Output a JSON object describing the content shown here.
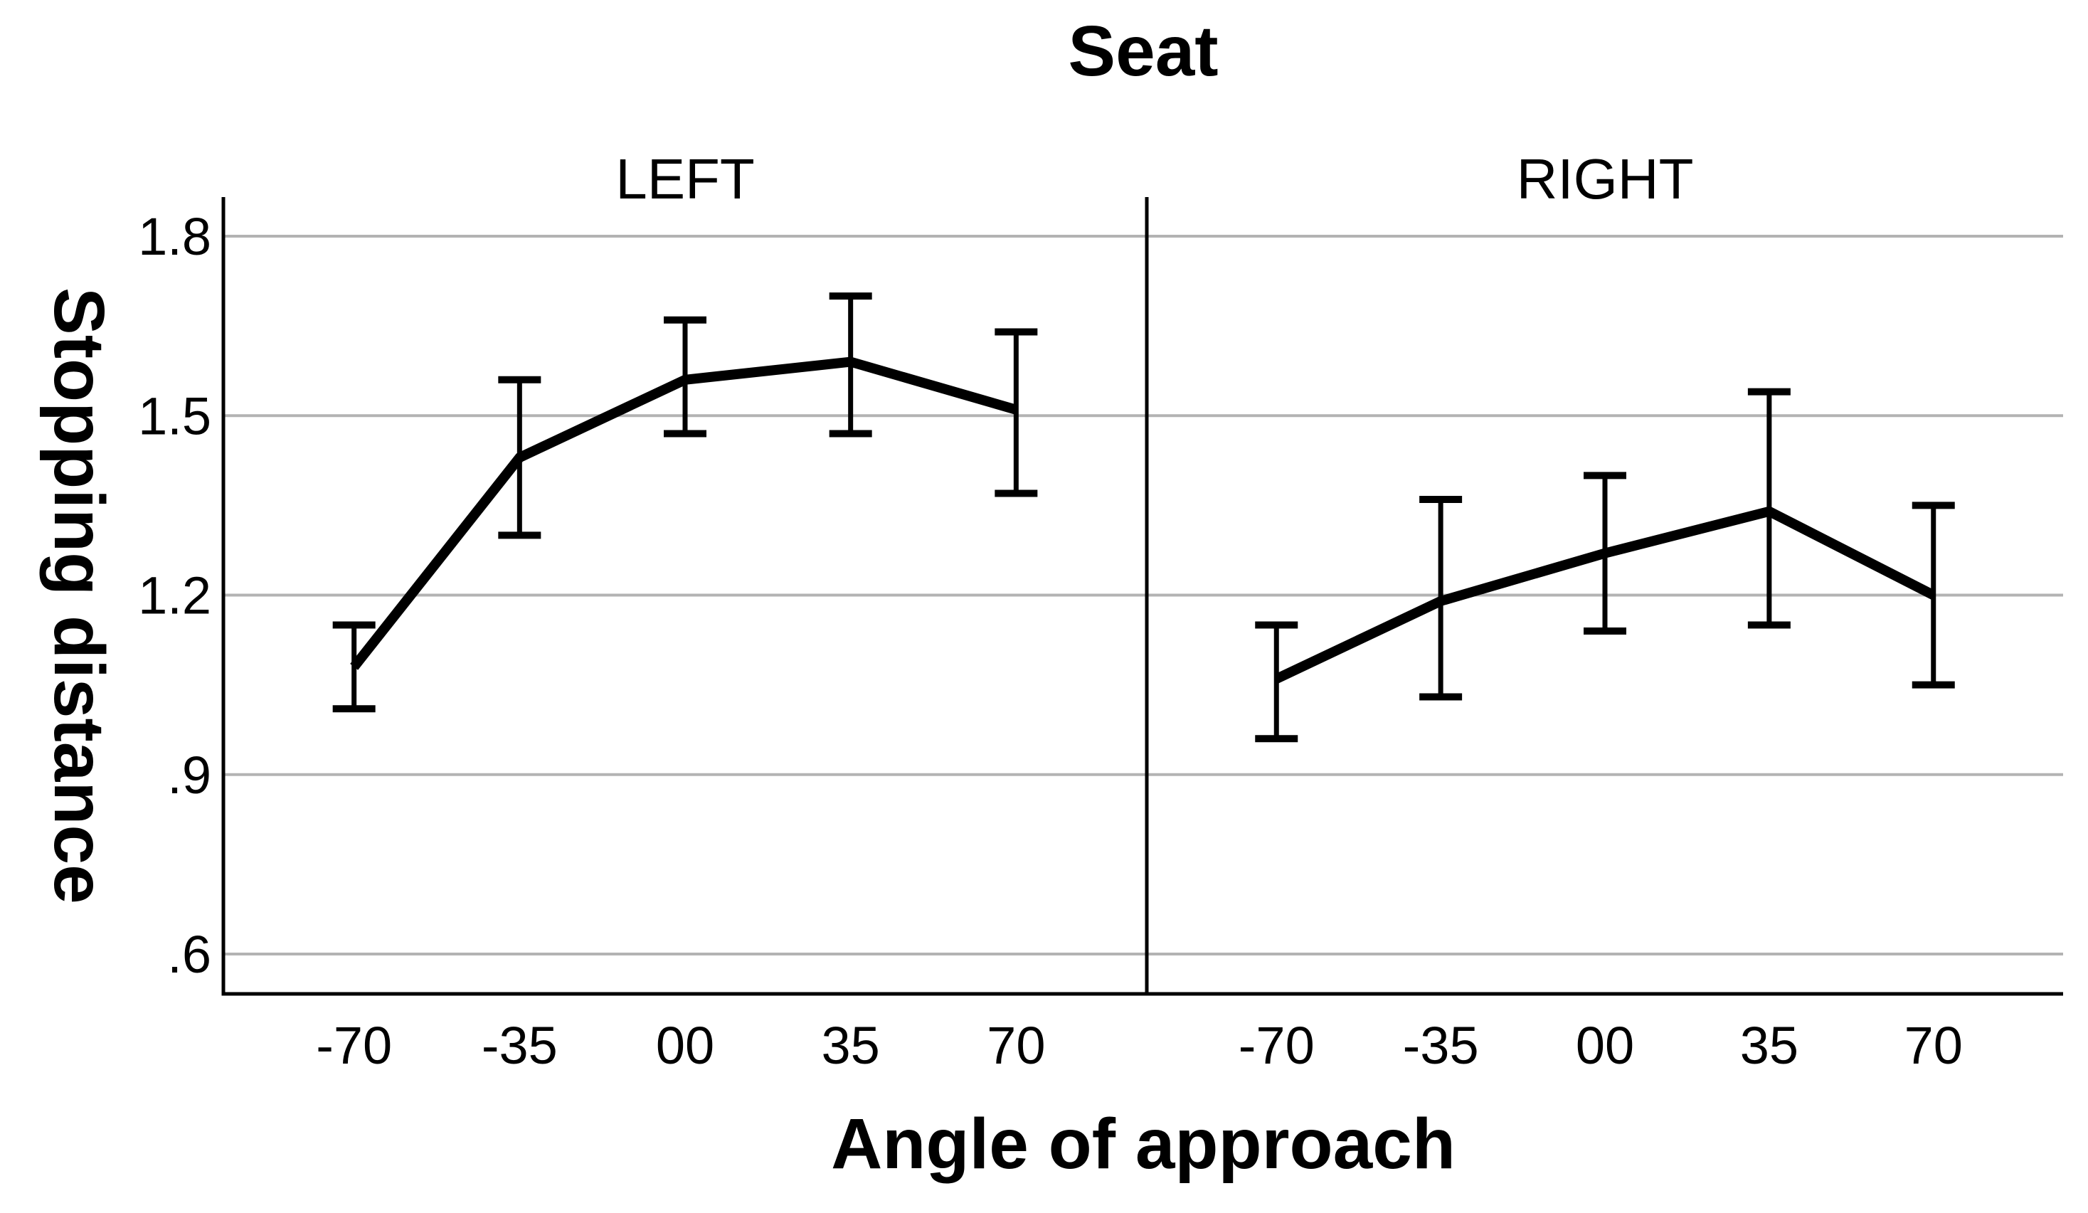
{
  "figure": {
    "title": "Seat",
    "x_axis_title": "Angle of approach",
    "y_axis_title": "Stopping distance"
  },
  "chart_data": {
    "type": "line",
    "title": "Seat",
    "xlabel": "Angle of approach",
    "ylabel": "Stopping distance",
    "panel_variable_values": [
      "LEFT",
      "RIGHT"
    ],
    "categories": [
      "-70",
      "-35",
      "00",
      "35",
      "70"
    ],
    "y_tick_labels": [
      "1.8",
      "1.5",
      "1.2",
      ".9",
      ".6"
    ],
    "y_tick_values": [
      1.8,
      1.5,
      1.2,
      0.9,
      0.6
    ],
    "ylim": [
      0.53,
      1.87
    ],
    "grid": "horizontal",
    "legend": "none",
    "series_style": "mean line with error bars (caps)",
    "colors": {
      "line": "#000000",
      "error_bar": "#000000",
      "grid": "#b3b3b3",
      "axis": "#000000",
      "text": "#000000",
      "background": "#ffffff"
    },
    "panels": [
      {
        "label": "LEFT",
        "points": [
          {
            "x": "-70",
            "mean": 1.08,
            "lower": 1.01,
            "upper": 1.15
          },
          {
            "x": "-35",
            "mean": 1.43,
            "lower": 1.3,
            "upper": 1.56
          },
          {
            "x": "00",
            "mean": 1.56,
            "lower": 1.47,
            "upper": 1.66
          },
          {
            "x": "35",
            "mean": 1.59,
            "lower": 1.47,
            "upper": 1.7
          },
          {
            "x": "70",
            "mean": 1.51,
            "lower": 1.37,
            "upper": 1.64
          }
        ]
      },
      {
        "label": "RIGHT",
        "points": [
          {
            "x": "-70",
            "mean": 1.06,
            "lower": 0.96,
            "upper": 1.15
          },
          {
            "x": "-35",
            "mean": 1.19,
            "lower": 1.03,
            "upper": 1.36
          },
          {
            "x": "00",
            "mean": 1.27,
            "lower": 1.14,
            "upper": 1.4
          },
          {
            "x": "35",
            "mean": 1.34,
            "lower": 1.15,
            "upper": 1.54
          },
          {
            "x": "70",
            "mean": 1.2,
            "lower": 1.05,
            "upper": 1.35
          }
        ]
      }
    ]
  }
}
